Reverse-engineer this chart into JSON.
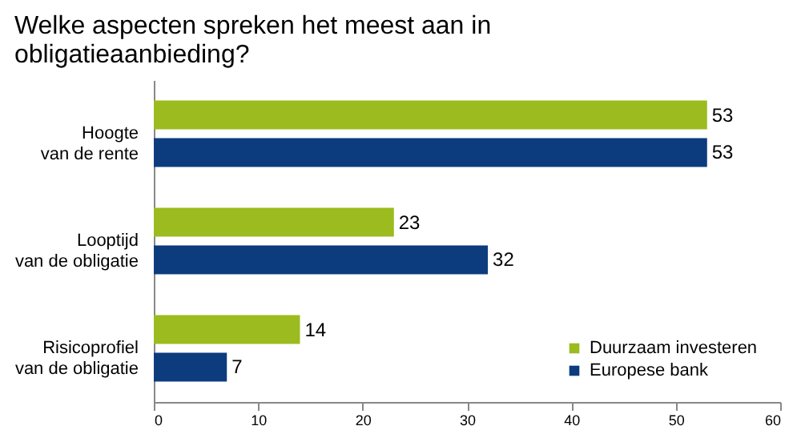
{
  "chart_data": {
    "type": "bar",
    "orientation": "horizontal",
    "title": "Welke aspecten spreken het meest aan in\nobligatieaanbieding?",
    "categories": [
      "Hoogte\nvan de rente",
      "Looptijd\nvan de obligatie",
      "Risicoprofiel\nvan de obligatie"
    ],
    "series": [
      {
        "name": "Duurzaam investeren",
        "color": "#9bbb1f",
        "values": [
          53,
          23,
          14
        ]
      },
      {
        "name": "Europese bank",
        "color": "#0c3c7e",
        "values": [
          53,
          32,
          7
        ]
      }
    ],
    "xlim": [
      0,
      60
    ],
    "xticks": [
      0,
      10,
      20,
      30,
      40,
      50,
      60
    ],
    "grid": false,
    "legend": "bottom right",
    "data_labels": true
  }
}
